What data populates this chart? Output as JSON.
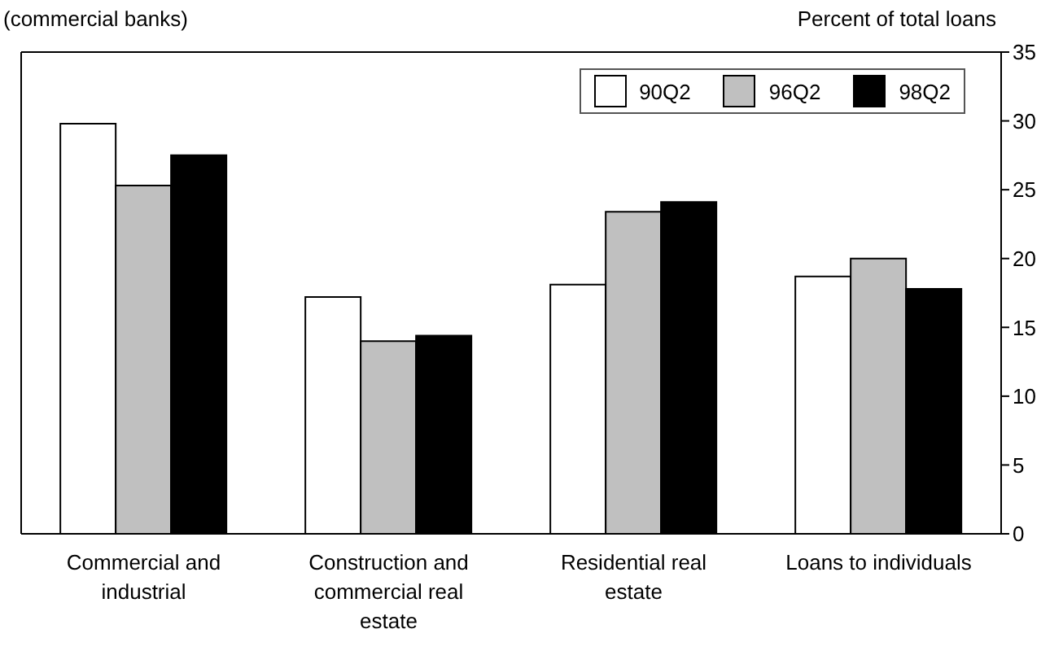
{
  "chart_data": {
    "type": "bar",
    "annotations": [
      "(commercial banks)",
      "Percent of total loans"
    ],
    "categories": [
      "Commercial and industrial",
      "Construction and commercial real estate",
      "Residential real estate",
      "Loans to individuals"
    ],
    "series": [
      {
        "name": "90Q2",
        "color": "#ffffff",
        "values": [
          29.8,
          17.2,
          18.1,
          18.7
        ]
      },
      {
        "name": "96Q2",
        "color": "#c0c0c0",
        "values": [
          25.3,
          14.0,
          23.4,
          20.0
        ]
      },
      {
        "name": "98Q2",
        "color": "#000000",
        "values": [
          27.5,
          14.4,
          24.1,
          17.8
        ]
      }
    ],
    "ylim": [
      0,
      35
    ],
    "yticks": [
      0,
      5,
      10,
      15,
      20,
      25,
      30,
      35
    ],
    "legend": "top right"
  }
}
